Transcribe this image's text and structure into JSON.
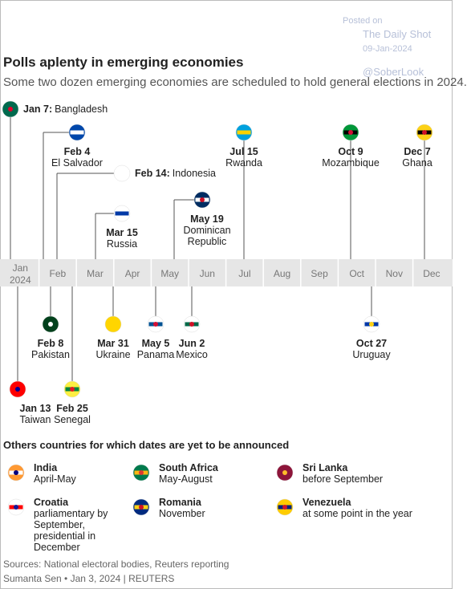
{
  "watermark": {
    "posted": "Posted on",
    "source": "The Daily Shot",
    "date": "09-Jan-2024",
    "handle": "@SoberLook"
  },
  "header": {
    "title": "Polls aplenty in emerging economies",
    "subtitle": "Some two dozen emerging economies are scheduled to hold general elections in 2024."
  },
  "timeline": {
    "months": [
      "Jan",
      "Feb",
      "Mar",
      "Apr",
      "May",
      "Jun",
      "Jul",
      "Aug",
      "Sep",
      "Oct",
      "Nov",
      "Dec"
    ],
    "year": "2024",
    "events": [
      {
        "date": "Jan 7:",
        "country": "Bangladesh"
      },
      {
        "date": "Feb 4",
        "country": "El Salvador"
      },
      {
        "date": "Feb 14:",
        "country": "Indonesia"
      },
      {
        "date": "Mar 15",
        "country": "Russia"
      },
      {
        "date": "May 19",
        "country": "Dominican Republic"
      },
      {
        "date": "Jul 15",
        "country": "Rwanda"
      },
      {
        "date": "Oct 9",
        "country": "Mozambique"
      },
      {
        "date": "Dec 7",
        "country": "Ghana"
      },
      {
        "date": "Feb 8",
        "country": "Pakistan"
      },
      {
        "date": "Jan 13",
        "country": "Taiwan"
      },
      {
        "date": "Feb 25",
        "country": "Senegal"
      },
      {
        "date": "Mar 31",
        "country": "Ukraine"
      },
      {
        "date": "May 5",
        "country": "Panama"
      },
      {
        "date": "Jun 2",
        "country": "Mexico"
      },
      {
        "date": "Oct 27",
        "country": "Uruguay"
      }
    ]
  },
  "others": {
    "heading": "Others countries for which dates are yet to be announced",
    "items": [
      {
        "country": "India",
        "detail": "April-May"
      },
      {
        "country": "South Africa",
        "detail": "May-August"
      },
      {
        "country": "Sri Lanka",
        "detail": "before September"
      },
      {
        "country": "Croatia",
        "detail": "parliamentary by September, presidential in December"
      },
      {
        "country": "Romania",
        "detail": "November"
      },
      {
        "country": "Venezuela",
        "detail": "at some point in the year"
      }
    ]
  },
  "footer": {
    "sources": "Sources: National electoral bodies, Reuters reporting",
    "byline": "Sumanta Sen • Jan 3, 2024 | REUTERS"
  }
}
